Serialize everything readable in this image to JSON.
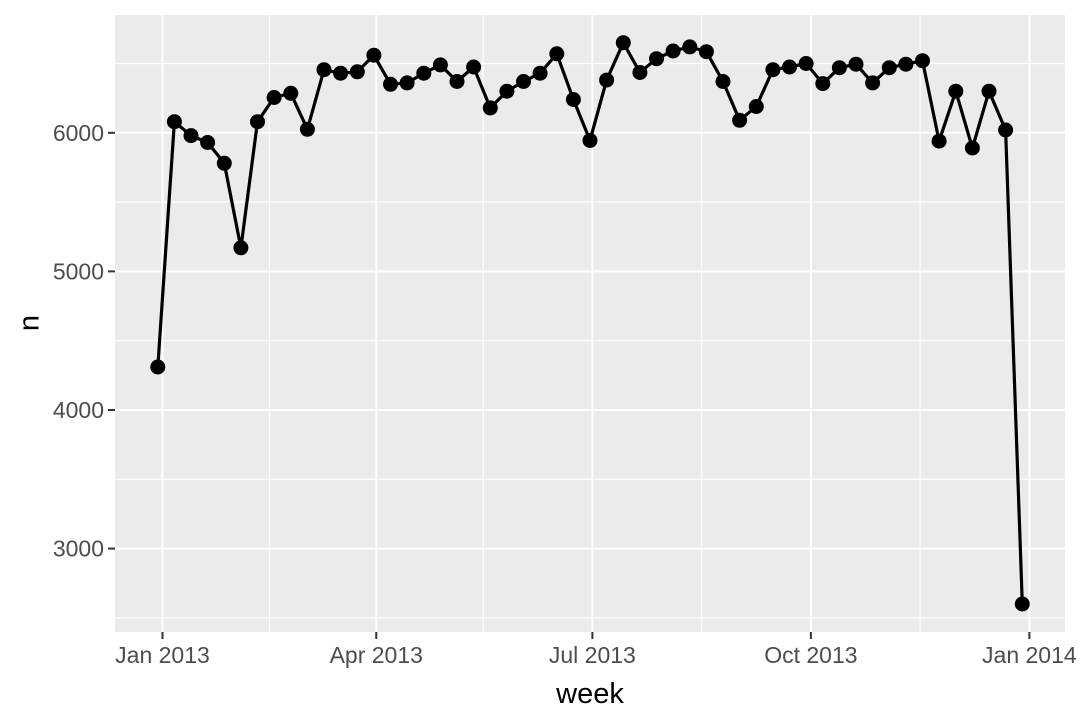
{
  "chart_data": {
    "type": "line",
    "title": "",
    "xlabel": "week",
    "ylabel": "n",
    "grid": "major+minor",
    "legend_position": "none",
    "marker": "point",
    "x_domain": [
      "2012-12-12",
      "2014-01-16"
    ],
    "ylim": [
      2398,
      6850
    ],
    "x": [
      "2012-12-30",
      "2013-01-06",
      "2013-01-13",
      "2013-01-20",
      "2013-01-27",
      "2013-02-03",
      "2013-02-10",
      "2013-02-17",
      "2013-02-24",
      "2013-03-03",
      "2013-03-10",
      "2013-03-17",
      "2013-03-24",
      "2013-03-31",
      "2013-04-07",
      "2013-04-14",
      "2013-04-21",
      "2013-04-28",
      "2013-05-05",
      "2013-05-12",
      "2013-05-19",
      "2013-05-26",
      "2013-06-02",
      "2013-06-09",
      "2013-06-16",
      "2013-06-23",
      "2013-06-30",
      "2013-07-07",
      "2013-07-14",
      "2013-07-21",
      "2013-07-28",
      "2013-08-04",
      "2013-08-11",
      "2013-08-18",
      "2013-08-25",
      "2013-09-01",
      "2013-09-08",
      "2013-09-15",
      "2013-09-22",
      "2013-09-29",
      "2013-10-06",
      "2013-10-13",
      "2013-10-20",
      "2013-10-27",
      "2013-11-03",
      "2013-11-10",
      "2013-11-17",
      "2013-11-24",
      "2013-12-01",
      "2013-12-08",
      "2013-12-15",
      "2013-12-22",
      "2013-12-29"
    ],
    "values": [
      4310,
      6080,
      5980,
      5930,
      5780,
      5170,
      6080,
      6255,
      6285,
      6025,
      6455,
      6430,
      6440,
      6560,
      6350,
      6360,
      6430,
      6490,
      6370,
      6475,
      6180,
      6300,
      6370,
      6430,
      6570,
      6240,
      5945,
      6380,
      6650,
      6435,
      6535,
      6590,
      6620,
      6585,
      6370,
      6090,
      6190,
      6455,
      6475,
      6500,
      6355,
      6470,
      6495,
      6360,
      6470,
      6495,
      6520,
      5940,
      6300,
      5890,
      6300,
      6020,
      2600
    ],
    "x_ticks": [
      {
        "date": "2013-01-01",
        "label": "Jan 2013"
      },
      {
        "date": "2013-04-01",
        "label": "Apr 2013"
      },
      {
        "date": "2013-07-01",
        "label": "Jul 2013"
      },
      {
        "date": "2013-10-01",
        "label": "Oct 2013"
      },
      {
        "date": "2014-01-01",
        "label": "Jan 2014"
      }
    ],
    "x_minor": [
      "2013-02-15",
      "2013-05-16",
      "2013-08-16",
      "2013-11-16"
    ],
    "y_ticks": [
      {
        "value": 3000,
        "label": "3000"
      },
      {
        "value": 4000,
        "label": "4000"
      },
      {
        "value": 5000,
        "label": "5000"
      },
      {
        "value": 6000,
        "label": "6000"
      }
    ],
    "y_minor": [
      2500,
      3500,
      4500,
      5500,
      6500
    ],
    "colors": {
      "panel_background": "#ebebeb",
      "gridline": "#ffffff",
      "line": "#000000",
      "point": "#000000",
      "tick_label": "#4d4d4d",
      "tick_mark": "#333333",
      "axis_title": "#000000",
      "page_background": "#ffffff"
    }
  }
}
